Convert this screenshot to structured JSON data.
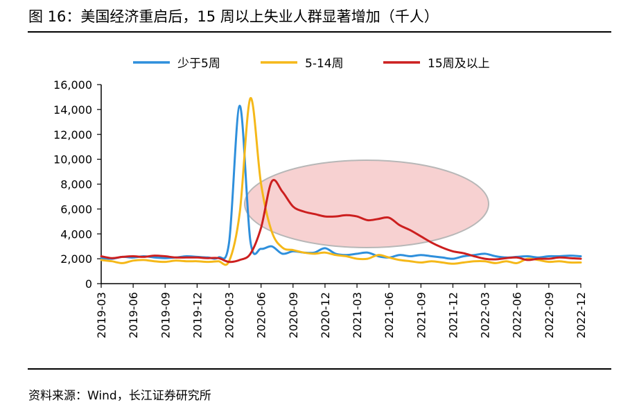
{
  "figure": {
    "title": "图 16：美国经济重启后，15 周以上失业人群显著增加（千人）",
    "source": "资料来源：Wind，长江证券研究所"
  },
  "chart_data": {
    "type": "line",
    "x": [
      "2019-03",
      "2019-04",
      "2019-05",
      "2019-06",
      "2019-07",
      "2019-08",
      "2019-09",
      "2019-10",
      "2019-11",
      "2019-12",
      "2020-01",
      "2020-02",
      "2020-03",
      "2020-04",
      "2020-05",
      "2020-06",
      "2020-07",
      "2020-08",
      "2020-09",
      "2020-10",
      "2020-11",
      "2020-12",
      "2021-01",
      "2021-02",
      "2021-03",
      "2021-04",
      "2021-05",
      "2021-06",
      "2021-07",
      "2021-08",
      "2021-09",
      "2021-10",
      "2021-11",
      "2021-12",
      "2022-01",
      "2022-02",
      "2022-03",
      "2022-04",
      "2022-05",
      "2022-06",
      "2022-07",
      "2022-08",
      "2022-09",
      "2022-10",
      "2022-11",
      "2022-12"
    ],
    "x_tick_labels": [
      "2019-03",
      "2019-06",
      "2019-09",
      "2019-12",
      "2020-03",
      "2020-06",
      "2020-09",
      "2020-12",
      "2021-03",
      "2021-06",
      "2021-09",
      "2021-12",
      "2022-03",
      "2022-06",
      "2022-09",
      "2022-12"
    ],
    "ylim": [
      0,
      16000
    ],
    "y_ticks": [
      0,
      2000,
      4000,
      6000,
      8000,
      10000,
      12000,
      14000,
      16000
    ],
    "y_tick_labels": [
      "0",
      "2,000",
      "4,000",
      "6,000",
      "8,000",
      "10,000",
      "12,000",
      "14,000",
      "16,000"
    ],
    "legend_position": "top",
    "grid": false,
    "series": [
      {
        "name": "少于5周",
        "color": "#2e8fdc",
        "values": [
          2050,
          2000,
          2150,
          2100,
          2200,
          2100,
          2050,
          2100,
          2200,
          2150,
          2100,
          2100,
          3300,
          14300,
          3400,
          2800,
          3000,
          2400,
          2600,
          2500,
          2500,
          2850,
          2400,
          2300,
          2400,
          2500,
          2200,
          2100,
          2300,
          2200,
          2300,
          2200,
          2100,
          2000,
          2200,
          2300,
          2400,
          2200,
          2100,
          2150,
          2200,
          2100,
          2200,
          2200,
          2250,
          2200
        ]
      },
      {
        "name": "5-14周",
        "color": "#f5b819",
        "values": [
          1900,
          1800,
          1650,
          1850,
          1900,
          1800,
          1750,
          1850,
          1800,
          1800,
          1750,
          1800,
          1800,
          5700,
          14900,
          8000,
          4200,
          2900,
          2700,
          2500,
          2400,
          2500,
          2300,
          2200,
          2000,
          2000,
          2300,
          2100,
          1900,
          1800,
          1700,
          1800,
          1700,
          1600,
          1700,
          1800,
          1800,
          1650,
          1800,
          1650,
          2000,
          1900,
          1750,
          1800,
          1700,
          1700
        ]
      },
      {
        "name": "15周及以上",
        "color": "#cc1f1f",
        "values": [
          2200,
          2050,
          2150,
          2200,
          2150,
          2250,
          2200,
          2100,
          2100,
          2100,
          2050,
          2050,
          1750,
          1900,
          2400,
          4500,
          8200,
          7400,
          6200,
          5800,
          5600,
          5400,
          5400,
          5500,
          5400,
          5100,
          5200,
          5300,
          4700,
          4300,
          3800,
          3300,
          2900,
          2600,
          2450,
          2200,
          2000,
          1950,
          2050,
          2100,
          1900,
          2000,
          2000,
          2100,
          2050,
          2000
        ]
      }
    ]
  }
}
